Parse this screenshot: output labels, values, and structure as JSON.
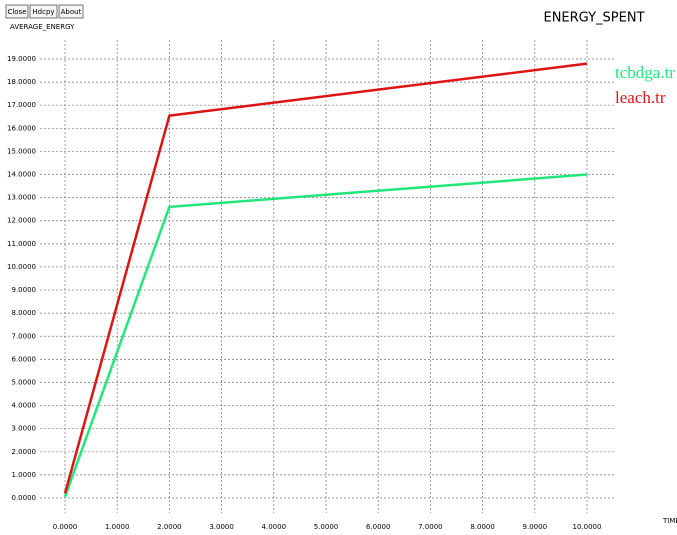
{
  "toolbar": [
    "Close",
    "Hdcpy",
    "About"
  ],
  "chart_data": {
    "type": "line",
    "title": "ENERGY_SPENT",
    "y_label": "AVERAGE_ENERGY",
    "x_label": "TIME",
    "x": [
      0,
      2,
      10
    ],
    "series": [
      {
        "name": "tcbdga.tr",
        "color": "#22e67a",
        "values": [
          0.05,
          12.6,
          14.0
        ]
      },
      {
        "name": "leach.tr",
        "color": "#dc1414",
        "values": [
          0.2,
          16.55,
          18.8
        ]
      }
    ],
    "xlim": [
      0,
      10
    ],
    "ylim": [
      0,
      19
    ],
    "grid": true,
    "xticks": [
      {
        "value": 0,
        "label": "0.0000"
      },
      {
        "value": 1,
        "label": "1.0000"
      },
      {
        "value": 2,
        "label": "2.0000"
      },
      {
        "value": 3,
        "label": "3.0000"
      },
      {
        "value": 4,
        "label": "4.0000"
      },
      {
        "value": 5,
        "label": "5.0000"
      },
      {
        "value": 6,
        "label": "6.0000"
      },
      {
        "value": 7,
        "label": "7.0000"
      },
      {
        "value": 8,
        "label": "8.0000"
      },
      {
        "value": 9,
        "label": "9.0000"
      },
      {
        "value": 10,
        "label": "10.0000"
      }
    ],
    "yticks": [
      {
        "value": 0,
        "label": "0.0000"
      },
      {
        "value": 1,
        "label": "1.0000"
      },
      {
        "value": 2,
        "label": "2.0000"
      },
      {
        "value": 3,
        "label": "3.0000"
      },
      {
        "value": 4,
        "label": "4.0000"
      },
      {
        "value": 5,
        "label": "5.0000"
      },
      {
        "value": 6,
        "label": "6.0000"
      },
      {
        "value": 7,
        "label": "7.0000"
      },
      {
        "value": 8,
        "label": "8.0000"
      },
      {
        "value": 9,
        "label": "9.0000"
      },
      {
        "value": 10,
        "label": "10.0000"
      },
      {
        "value": 11,
        "label": "11.0000"
      },
      {
        "value": 12,
        "label": "12.0000"
      },
      {
        "value": 13,
        "label": "13.0000"
      },
      {
        "value": 14,
        "label": "14.0000"
      },
      {
        "value": 15,
        "label": "15.0000"
      },
      {
        "value": 16,
        "label": "16.0000"
      },
      {
        "value": 17,
        "label": "17.0000"
      },
      {
        "value": 18,
        "label": "18.0000"
      },
      {
        "value": 19,
        "label": "19.0000"
      }
    ]
  }
}
